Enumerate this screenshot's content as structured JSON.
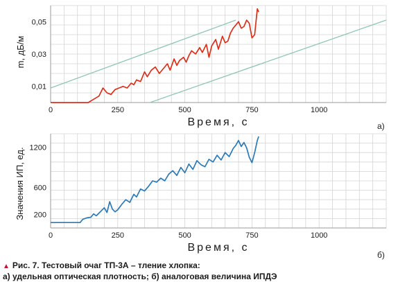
{
  "chart_data": [
    {
      "type": "line",
      "panel_label": "а)",
      "xlabel": "Время, с",
      "ylabel": "m, дБ/м",
      "xlim": [
        0,
        1250
      ],
      "ylim": [
        0,
        0.06
      ],
      "x_ticks": [
        0,
        250,
        500,
        750,
        1000
      ],
      "y_ticks": [
        0.01,
        0.03,
        0.05
      ],
      "y_tick_labels": [
        "0,01",
        "0,03",
        "0,05"
      ],
      "grid": true,
      "series": [
        {
          "color": "#d9301a",
          "x": [
            0,
            100,
            140,
            160,
            180,
            195,
            210,
            225,
            240,
            255,
            270,
            285,
            300,
            310,
            320,
            335,
            350,
            360,
            375,
            390,
            405,
            420,
            435,
            445,
            460,
            470,
            480,
            495,
            505,
            515,
            525,
            540,
            555,
            565,
            580,
            590,
            600,
            615,
            625,
            640,
            650,
            660,
            670,
            680,
            690,
            700,
            710,
            720,
            730,
            740,
            750,
            760,
            770,
            775
          ],
          "y": [
            0,
            0,
            0,
            0.002,
            0.004,
            0.009,
            0.006,
            0.005,
            0.008,
            0.009,
            0.01,
            0.009,
            0.012,
            0.011,
            0.014,
            0.013,
            0.019,
            0.016,
            0.02,
            0.022,
            0.018,
            0.021,
            0.024,
            0.02,
            0.027,
            0.023,
            0.026,
            0.028,
            0.025,
            0.029,
            0.032,
            0.03,
            0.034,
            0.031,
            0.036,
            0.028,
            0.035,
            0.039,
            0.033,
            0.041,
            0.037,
            0.038,
            0.043,
            0.046,
            0.048,
            0.05,
            0.046,
            0.047,
            0.051,
            0.049,
            0.04,
            0.042,
            0.058,
            0.056
          ]
        },
        {
          "color": "#8fc6b8",
          "x": [
            0,
            690
          ],
          "y": [
            0.009,
            0.051
          ]
        },
        {
          "color": "#8fc6b8",
          "x": [
            370,
            1250
          ],
          "y": [
            0,
            0.051
          ]
        }
      ]
    },
    {
      "type": "line",
      "panel_label": "б)",
      "xlabel": "Время, с",
      "ylabel": "Значения ИП, ед.",
      "xlim": [
        0,
        1250
      ],
      "ylim": [
        0,
        1400
      ],
      "x_ticks": [
        0,
        250,
        500,
        750,
        1000
      ],
      "y_ticks": [
        200,
        600,
        1200
      ],
      "y_tick_labels": [
        "200",
        "600",
        "1200"
      ],
      "grid": true,
      "series": [
        {
          "color": "#2a7ab8",
          "x": [
            0,
            110,
            120,
            135,
            150,
            160,
            170,
            180,
            190,
            200,
            210,
            220,
            230,
            240,
            250,
            265,
            280,
            295,
            310,
            320,
            335,
            350,
            365,
            380,
            395,
            410,
            425,
            440,
            455,
            470,
            485,
            500,
            515,
            530,
            545,
            560,
            575,
            590,
            605,
            620,
            635,
            650,
            665,
            680,
            690,
            700,
            710,
            720,
            730,
            740,
            750,
            760,
            770,
            775
          ],
          "y": [
            80,
            80,
            130,
            150,
            160,
            210,
            180,
            220,
            260,
            300,
            230,
            390,
            280,
            240,
            270,
            350,
            420,
            380,
            500,
            460,
            580,
            550,
            620,
            700,
            680,
            740,
            700,
            800,
            850,
            780,
            900,
            820,
            950,
            870,
            1000,
            940,
            910,
            1020,
            980,
            1080,
            1010,
            1120,
            1060,
            1180,
            1230,
            1300,
            1210,
            1270,
            1190,
            1050,
            970,
            1120,
            1300,
            1360
          ]
        }
      ]
    }
  ],
  "caption": {
    "line1": "Рис. 7. Тестовый очаг ТП-3А – тление хлопка:",
    "line2": "а) удельная оптическая плотность; б) аналоговая величина ИПДЭ"
  }
}
